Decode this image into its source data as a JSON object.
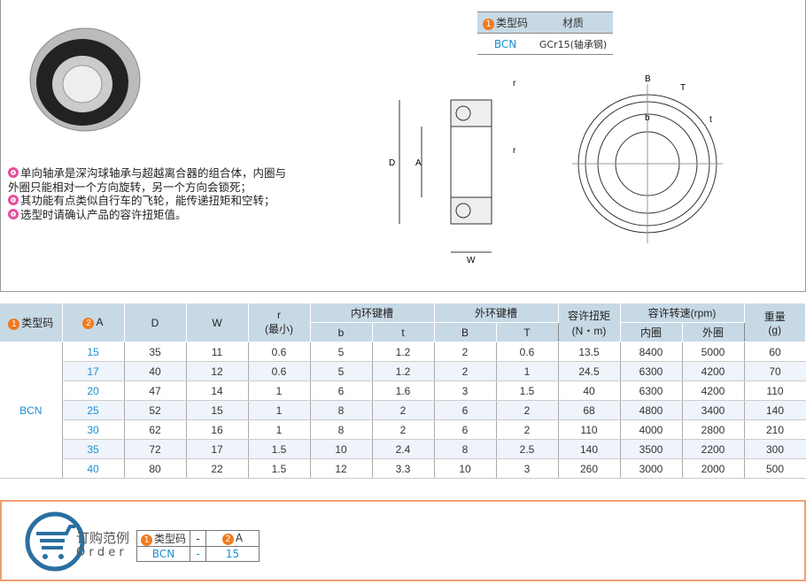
{
  "material_table": {
    "headers": [
      "类型码",
      "材质"
    ],
    "header_num": "1",
    "row": [
      "BCN",
      "GCr15(轴承钢)"
    ]
  },
  "description": [
    "单向轴承是深沟球轴承与超越离合器的组合体，内圈与外圈只能相对一个方向旋转，另一个方向会锁死；",
    "其功能有点类似自行车的飞轮，能传递扭矩和空转；",
    "选型时请确认产品的容许扭矩值。"
  ],
  "drawing_labels": {
    "r1": "r",
    "r2": "r",
    "D": "D",
    "A": "A",
    "W": "W",
    "B": "B",
    "T": "T",
    "b": "b",
    "t": "t"
  },
  "spec_table": {
    "headers": {
      "type": "类型码",
      "A": "A",
      "D": "D",
      "W": "W",
      "r": "r",
      "r_sub": "(最小)",
      "inner": "内环键槽",
      "outer": "外环键槽",
      "b": "b",
      "t": "t",
      "B": "B",
      "T": "T",
      "torque": "容许扭矩",
      "torque_unit": "(N・m)",
      "speed": "容许转速(rpm)",
      "speed_in": "内圈",
      "speed_out": "外圈",
      "weight": "重量",
      "weight_unit": "(g)"
    },
    "type": "BCN",
    "rows": [
      [
        "15",
        "35",
        "11",
        "0.6",
        "5",
        "1.2",
        "2",
        "0.6",
        "13.5",
        "8400",
        "5000",
        "60"
      ],
      [
        "17",
        "40",
        "12",
        "0.6",
        "5",
        "1.2",
        "2",
        "1",
        "24.5",
        "6300",
        "4200",
        "70"
      ],
      [
        "20",
        "47",
        "14",
        "1",
        "6",
        "1.6",
        "3",
        "1.5",
        "40",
        "6300",
        "4200",
        "110"
      ],
      [
        "25",
        "52",
        "15",
        "1",
        "8",
        "2",
        "6",
        "2",
        "68",
        "4800",
        "3400",
        "140"
      ],
      [
        "30",
        "62",
        "16",
        "1",
        "8",
        "2",
        "6",
        "2",
        "110",
        "4000",
        "2800",
        "210"
      ],
      [
        "35",
        "72",
        "17",
        "1.5",
        "10",
        "2.4",
        "8",
        "2.5",
        "140",
        "3500",
        "2200",
        "300"
      ],
      [
        "40",
        "80",
        "22",
        "1.5",
        "12",
        "3.3",
        "10",
        "3",
        "260",
        "3000",
        "2000",
        "500"
      ]
    ]
  },
  "order": {
    "title": "订购范例",
    "subtitle": "O r d e r",
    "h1": "类型码",
    "dash": "-",
    "h2": "A",
    "v1": "BCN",
    "v2": "15"
  },
  "colors": {
    "accent": "#1a8fd1",
    "header_bg": "#c8d9e6",
    "number_badge": "#f07a1e",
    "bullet": "#e84f9d",
    "order_border": "#f0a070"
  }
}
